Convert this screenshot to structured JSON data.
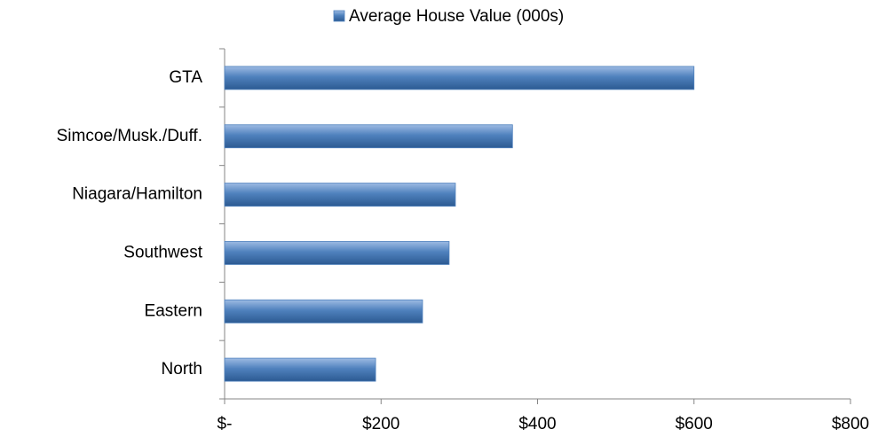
{
  "chart_data": {
    "type": "bar",
    "orientation": "horizontal",
    "categories": [
      "GTA",
      "Simcoe/Musk./Duff.",
      "Niagara/Hamilton",
      "Southwest",
      "Eastern",
      "North"
    ],
    "series": [
      {
        "name": "Average House Value (000s)",
        "color": "#4f81bd",
        "values": [
          600,
          368,
          295,
          287,
          253,
          193
        ]
      }
    ],
    "xlim": [
      0,
      800
    ],
    "xticks": [
      {
        "value": 0,
        "label": "$-"
      },
      {
        "value": 200,
        "label": "$200"
      },
      {
        "value": 400,
        "label": "$400"
      },
      {
        "value": 600,
        "label": "$600"
      },
      {
        "value": 800,
        "label": "$800"
      }
    ],
    "legend": "top",
    "grid": false
  }
}
